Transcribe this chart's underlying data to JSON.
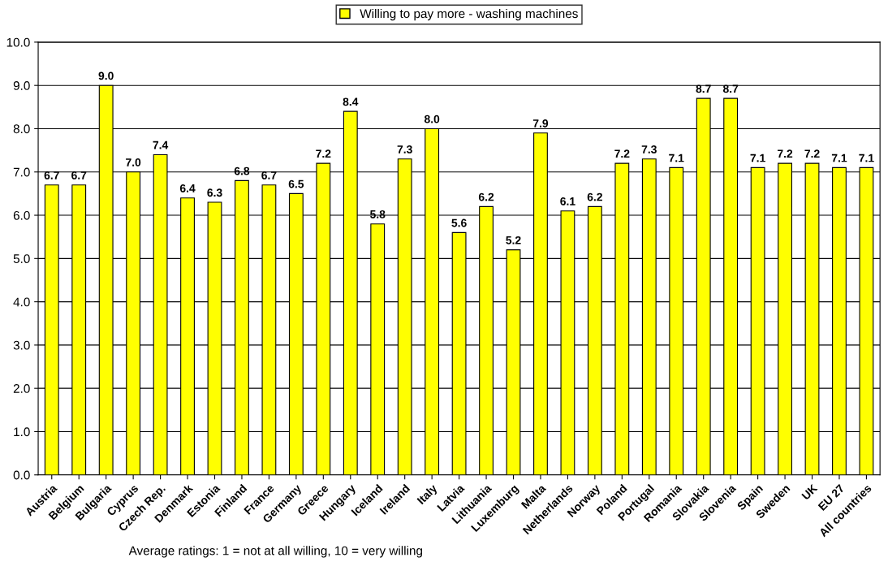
{
  "chart_data": {
    "type": "bar",
    "categories": [
      "Austria",
      "Belgium",
      "Bulgaria",
      "Cyprus",
      "Czech Rep.",
      "Denmark",
      "Estonia",
      "Finland",
      "France",
      "Germany",
      "Greece",
      "Hungary",
      "Iceland",
      "Ireland",
      "Italy",
      "Latvia",
      "Lithuania",
      "Luxemburg",
      "Malta",
      "Netherlands",
      "Norway",
      "Poland",
      "Portugal",
      "Romania",
      "Slovakia",
      "Slovenia",
      "Spain",
      "Sweden",
      "UK",
      "EU 27",
      "All countries"
    ],
    "series": [
      {
        "name": "Willing to pay more - washing machines",
        "color": "#ffff00",
        "values": [
          6.7,
          6.7,
          9.0,
          7.0,
          7.4,
          6.4,
          6.3,
          6.8,
          6.7,
          6.5,
          7.2,
          8.4,
          5.8,
          7.3,
          8.0,
          5.6,
          6.2,
          5.2,
          7.9,
          6.1,
          6.2,
          7.2,
          7.3,
          7.1,
          8.7,
          8.7,
          7.1,
          7.2,
          7.2,
          7.1,
          7.1
        ],
        "value_labels": [
          "6.7",
          "6.7",
          "9.0",
          "7.0",
          "7.4",
          "6.4",
          "6.3",
          "6.8",
          "6.7",
          "6.5",
          "7.2",
          "8.4",
          "5.8",
          "7.3",
          "8.0",
          "5.6",
          "6.2",
          "5.2",
          "7.9",
          "6.1",
          "6.2",
          "7.2",
          "7.3",
          "7.1",
          "8.7",
          "8.7",
          "7.1",
          "7.2",
          "7.2",
          "7.1",
          "7.1"
        ]
      }
    ],
    "ylim": [
      0,
      10
    ],
    "yticks": [
      {
        "value": 0,
        "label": "0.0"
      },
      {
        "value": 1,
        "label": "1.0"
      },
      {
        "value": 2,
        "label": "2.0"
      },
      {
        "value": 3,
        "label": "3.0"
      },
      {
        "value": 4,
        "label": "4.0"
      },
      {
        "value": 5,
        "label": "5.0"
      },
      {
        "value": 6,
        "label": "6.0"
      },
      {
        "value": 7,
        "label": "7.0"
      },
      {
        "value": 8,
        "label": "8.0"
      },
      {
        "value": 9,
        "label": "9.0"
      },
      {
        "value": 10,
        "label": "10.0"
      }
    ],
    "grid": "y",
    "legend": "top",
    "annotations": [
      "Average ratings: 1 = not at all willing, 10 = very willing"
    ]
  }
}
